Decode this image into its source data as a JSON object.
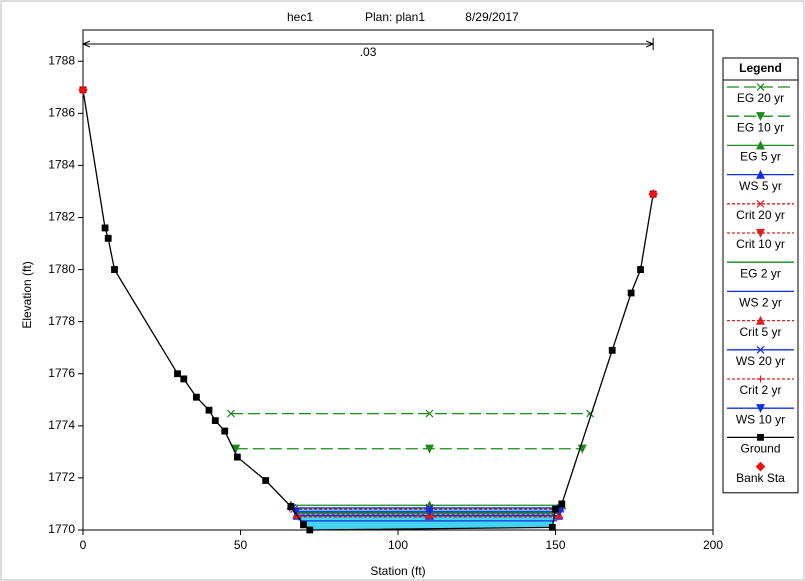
{
  "chart_data": {
    "type": "line",
    "title_parts": [
      "hec1",
      "Plan: plan1",
      "8/29/2017"
    ],
    "x_label": "Station (ft)",
    "y_label": "Elevation (ft)",
    "xlim": [
      0,
      200
    ],
    "xticks": [
      0,
      50,
      100,
      150,
      200
    ],
    "ylim": [
      1770,
      1789.2
    ],
    "yticks": [
      1770,
      1772,
      1774,
      1776,
      1778,
      1780,
      1782,
      1784,
      1786,
      1788
    ],
    "n_value_label": ".03",
    "n_value_stations": [
      0,
      181
    ],
    "legend_title": "Legend",
    "water_color": "#22ccee",
    "series": [
      {
        "name": "EG 20 yr",
        "color": "#1a8a1a",
        "dash": "12 5",
        "marker": "x",
        "x": [
          47,
          110,
          161
        ],
        "values": [
          1774.47,
          1774.47,
          1774.47
        ]
      },
      {
        "name": "EG 10 yr",
        "color": "#1a8a1a",
        "dash": "12 5",
        "marker": "tri-down",
        "x": [
          48.5,
          110,
          158.5
        ],
        "values": [
          1773.12,
          1773.12,
          1773.12
        ]
      },
      {
        "name": "EG 5 yr",
        "color": "#1a8a1a",
        "dash": "",
        "marker": "tri-up",
        "x": [
          66,
          110,
          152
        ],
        "values": [
          1770.95,
          1770.95,
          1770.95
        ]
      },
      {
        "name": "WS 5 yr",
        "color": "#1030e0",
        "dash": "",
        "marker": "tri-up",
        "x": [
          68,
          110,
          151
        ],
        "values": [
          1770.55,
          1770.55,
          1770.55
        ]
      },
      {
        "name": "Crit 20 yr",
        "color": "#e02020",
        "dash": "3 2",
        "marker": "x",
        "x": [
          67,
          110,
          151.5
        ],
        "values": [
          1770.8,
          1770.8,
          1770.8
        ]
      },
      {
        "name": "Crit 10 yr",
        "color": "#e02020",
        "dash": "3 2",
        "marker": "tri-down",
        "x": [
          67.5,
          110,
          151.3
        ],
        "values": [
          1770.7,
          1770.7,
          1770.7
        ]
      },
      {
        "name": "EG 2 yr",
        "color": "#1a8a1a",
        "dash": "",
        "marker": "none",
        "x": [
          67.7,
          110,
          151.2
        ],
        "values": [
          1770.65,
          1770.65,
          1770.65
        ]
      },
      {
        "name": "WS 2 yr",
        "color": "#1030e0",
        "dash": "",
        "marker": "none",
        "x": [
          69,
          110,
          150.5
        ],
        "values": [
          1770.35,
          1770.35,
          1770.35
        ]
      },
      {
        "name": "Crit 5 yr",
        "color": "#e02020",
        "dash": "3 2",
        "marker": "tri-up",
        "x": [
          67.8,
          110,
          151.1
        ],
        "values": [
          1770.6,
          1770.6,
          1770.6
        ]
      },
      {
        "name": "WS 20 yr",
        "color": "#1030e0",
        "dash": "",
        "marker": "x",
        "x": [
          66.5,
          110,
          151.6
        ],
        "values": [
          1770.85,
          1770.85,
          1770.85
        ]
      },
      {
        "name": "Crit 2 yr",
        "color": "#e02020",
        "dash": "3 2",
        "marker": "plus",
        "x": [
          68.5,
          110,
          150.8
        ],
        "values": [
          1770.5,
          1770.5,
          1770.5
        ]
      },
      {
        "name": "WS 10 yr",
        "color": "#1030e0",
        "dash": "",
        "marker": "tri-down",
        "x": [
          67.5,
          110,
          151.3
        ],
        "values": [
          1770.7,
          1770.7,
          1770.7
        ]
      },
      {
        "name": "Ground",
        "color": "#000000",
        "dash": "",
        "marker": "square",
        "x": [
          0,
          7,
          8,
          10,
          30,
          32,
          36,
          40,
          42,
          45,
          49,
          58,
          66,
          70,
          72,
          149,
          150,
          152,
          168,
          174,
          177,
          181
        ],
        "values": [
          1786.9,
          1781.6,
          1781.2,
          1780,
          1776,
          1775.8,
          1775.1,
          1774.6,
          1774.2,
          1773.8,
          1772.8,
          1771.9,
          1770.9,
          1770.2,
          1770,
          1770.1,
          1770.8,
          1771,
          1776.9,
          1779.1,
          1780,
          1782.9
        ]
      },
      {
        "name": "Bank Sta",
        "color": "#ee1111",
        "dash": "none",
        "marker": "diamond",
        "x": [
          0,
          181
        ],
        "values": [
          1786.9,
          1782.9
        ]
      }
    ]
  }
}
